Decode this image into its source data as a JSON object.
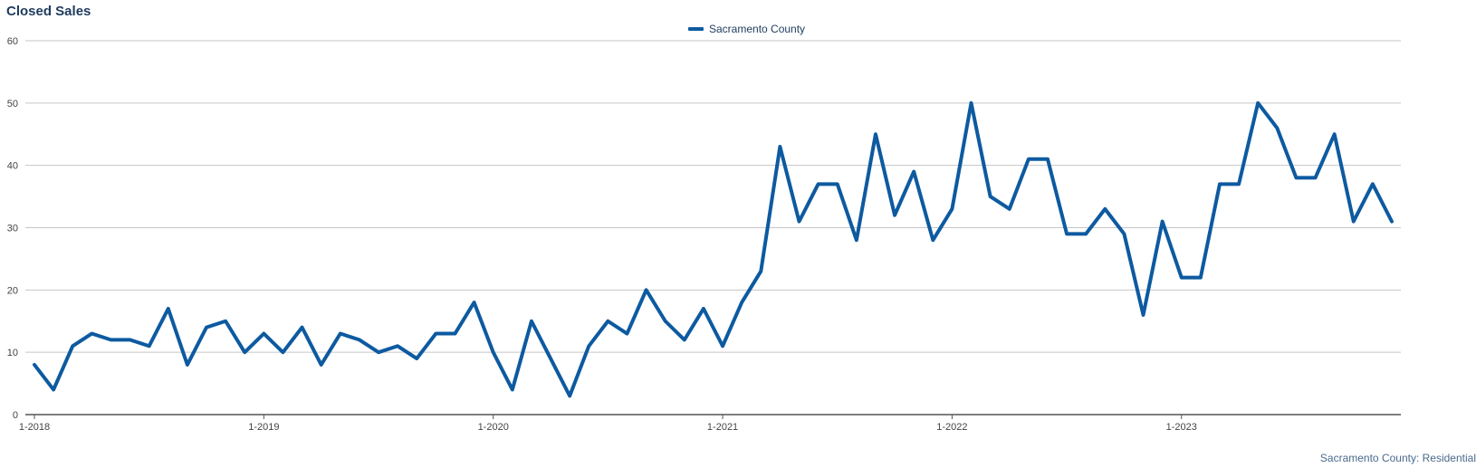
{
  "title": "Closed Sales",
  "footer": "Sacramento County: Residential",
  "colors": {
    "series": "#0d5aa0",
    "grid": "#c6c6c6",
    "axis": "#555555",
    "text": "#444444"
  },
  "chart_data": {
    "type": "line",
    "title": "Closed Sales",
    "legend_position": "top-center",
    "grid": true,
    "ylim": [
      0,
      60
    ],
    "yticks": [
      0,
      10,
      20,
      30,
      40,
      50,
      60
    ],
    "xlim": [
      "2018-01",
      "2023-12"
    ],
    "xticks": [
      "1-2018",
      "1-2019",
      "1-2020",
      "1-2021",
      "1-2022",
      "1-2023"
    ],
    "series": [
      {
        "name": "Sacramento County",
        "values": [
          8,
          4,
          11,
          13,
          12,
          12,
          11,
          17,
          8,
          14,
          15,
          10,
          13,
          10,
          14,
          8,
          13,
          12,
          10,
          11,
          9,
          13,
          13,
          18,
          10,
          4,
          15,
          9,
          3,
          11,
          15,
          13,
          20,
          15,
          12,
          17,
          11,
          18,
          23,
          43,
          31,
          37,
          37,
          28,
          45,
          32,
          39,
          28,
          33,
          50,
          35,
          33,
          41,
          41,
          29,
          29,
          33,
          29,
          16,
          31,
          22,
          22,
          37,
          37,
          50,
          46,
          38,
          38,
          45,
          31,
          37,
          31
        ]
      }
    ]
  }
}
